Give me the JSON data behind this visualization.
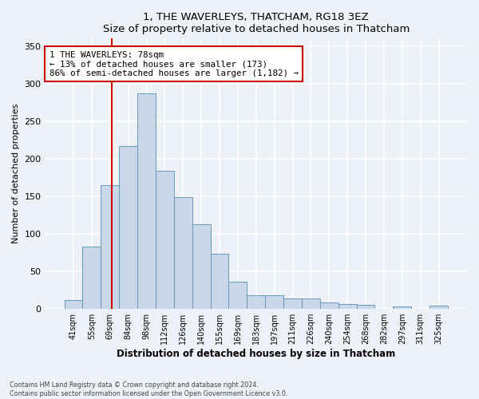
{
  "title": "1, THE WAVERLEYS, THATCHAM, RG18 3EZ",
  "subtitle": "Size of property relative to detached houses in Thatcham",
  "xlabel": "Distribution of detached houses by size in Thatcham",
  "ylabel": "Number of detached properties",
  "bar_labels": [
    "41sqm",
    "55sqm",
    "69sqm",
    "84sqm",
    "98sqm",
    "112sqm",
    "126sqm",
    "140sqm",
    "155sqm",
    "169sqm",
    "183sqm",
    "197sqm",
    "211sqm",
    "226sqm",
    "240sqm",
    "254sqm",
    "268sqm",
    "282sqm",
    "297sqm",
    "311sqm",
    "325sqm"
  ],
  "bar_values": [
    12,
    83,
    165,
    217,
    287,
    184,
    149,
    113,
    74,
    36,
    18,
    18,
    14,
    14,
    9,
    7,
    6,
    0,
    3,
    0,
    5
  ],
  "bar_color": "#c8d8e8",
  "bar_edge_color": "#6699bb",
  "annotation_text": "1 THE WAVERLEYS: 78sqm\n← 13% of detached houses are smaller (173)\n86% of semi-detached houses are larger (1,182) →",
  "vline_color": "#cc0000",
  "footer_line1": "Contains HM Land Registry data © Crown copyright and database right 2024.",
  "footer_line2": "Contains public sector information licensed under the Open Government Licence v3.0.",
  "bg_color": "#eef2f8",
  "plot_bg_color": "#eef2f8",
  "grid_color": "#ffffff",
  "ylim": [
    0,
    360
  ],
  "yticks": [
    0,
    50,
    100,
    150,
    200,
    250,
    300,
    350
  ]
}
